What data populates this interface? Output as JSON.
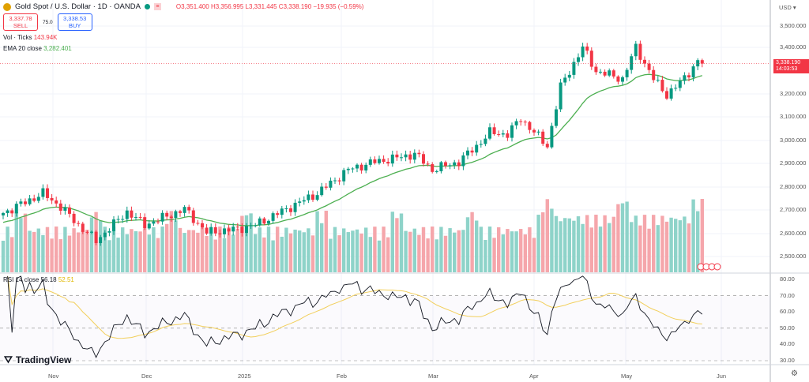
{
  "header": {
    "title": "Gold Spot / U.S. Dollar · 1D · OANDA",
    "ohlc": "O3,351.400 H3,356.995 L3,331.445 C3,338.190 −19.935 (−0.59%)"
  },
  "trade": {
    "sell_price": "3,337.78",
    "sell_label": "SELL",
    "spread": "75.0",
    "buy_price": "3,338.53",
    "buy_label": "BUY"
  },
  "indicators": {
    "vol_label": "Vol · Ticks",
    "vol_value": "143.94K",
    "ema_label": "EMA 20 close",
    "ema_value": "3,282.401",
    "rsi_label": "RSI 14 close",
    "rsi_value": "56.18",
    "rsi_ma_value": "52.51"
  },
  "axis": {
    "currency": "USD",
    "price_ticks": [
      "3,500.000",
      "3,400.000",
      "3,200.000",
      "3,100.000",
      "3,000.000",
      "2,900.000",
      "2,800.000",
      "2,700.000",
      "2,600.000",
      "2,500.000"
    ],
    "rsi_ticks": [
      "80.00",
      "70.00",
      "60.00",
      "50.00",
      "40.00",
      "30.00"
    ],
    "time_ticks": [
      "Nov",
      "Dec",
      "2025",
      "Feb",
      "Mar",
      "Apr",
      "May",
      "Jun"
    ],
    "last_price": "3,338.190",
    "countdown": "14:03:53"
  },
  "brand": "TradingView",
  "colors": {
    "up": "#089981",
    "down": "#f23645",
    "ema": "#4caf50",
    "rsi": "#131722",
    "rsi_ma": "#f2cf5b"
  },
  "chart_data": {
    "type": "candlestick",
    "title": "Gold Spot / U.S. Dollar 1D",
    "ylim": [
      2450,
      3560
    ],
    "close_keypoints": [
      [
        0,
        2694
      ],
      [
        9,
        2779
      ],
      [
        13,
        2721
      ],
      [
        17,
        2643
      ],
      [
        21,
        2575
      ],
      [
        28,
        2700
      ],
      [
        32,
        2643
      ],
      [
        41,
        2711
      ],
      [
        46,
        2610
      ],
      [
        53,
        2626
      ],
      [
        57,
        2643
      ],
      [
        64,
        2711
      ],
      [
        71,
        2779
      ],
      [
        78,
        2881
      ],
      [
        84,
        2915
      ],
      [
        89,
        2932
      ],
      [
        93,
        2949
      ],
      [
        97,
        2881
      ],
      [
        103,
        2915
      ],
      [
        107,
        2983
      ],
      [
        110,
        3041
      ],
      [
        114,
        3034
      ],
      [
        117,
        3102
      ],
      [
        123,
        2983
      ],
      [
        126,
        3238
      ],
      [
        131,
        3408
      ],
      [
        134,
        3306
      ],
      [
        140,
        3272
      ],
      [
        143,
        3408
      ],
      [
        147,
        3272
      ],
      [
        150,
        3204
      ],
      [
        153,
        3255
      ],
      [
        157,
        3347
      ],
      [
        158,
        3338
      ]
    ],
    "rsi_range": [
      25,
      85
    ],
    "rsi_levels": [
      70,
      50,
      30
    ]
  }
}
